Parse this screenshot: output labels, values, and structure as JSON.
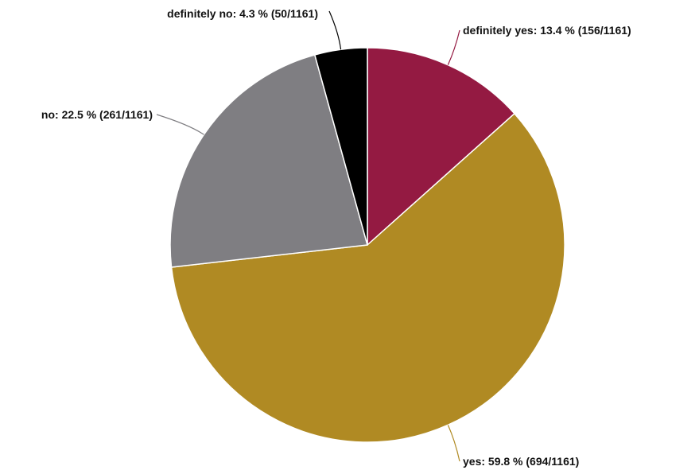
{
  "chart_data": {
    "type": "pie",
    "title": "",
    "total": 1161,
    "start_angle_deg": 0,
    "direction": "clockwise",
    "slices": [
      {
        "key": "definitely-yes",
        "label": "definitely yes: 13.4 % (156/1161)",
        "category": "definitely yes",
        "percent": 13.4,
        "count": 156,
        "color": "#941a42",
        "label_side": "right",
        "label_position": "top-right"
      },
      {
        "key": "yes",
        "label": "yes: 59.8 % (694/1161)",
        "category": "yes",
        "percent": 59.8,
        "count": 694,
        "color": "#b08a23",
        "label_side": "right",
        "label_position": "bottom-right"
      },
      {
        "key": "no",
        "label": "no: 22.5 % (261/1161)",
        "category": "no",
        "percent": 22.5,
        "count": 261,
        "color": "#7f7e82",
        "label_side": "left",
        "label_position": "left"
      },
      {
        "key": "definitely-no",
        "label": "definitely no: 4.3 % (50/1161)",
        "category": "definitely no",
        "percent": 4.3,
        "count": 50,
        "color": "#000000",
        "label_side": "left",
        "label_position": "top"
      }
    ]
  }
}
